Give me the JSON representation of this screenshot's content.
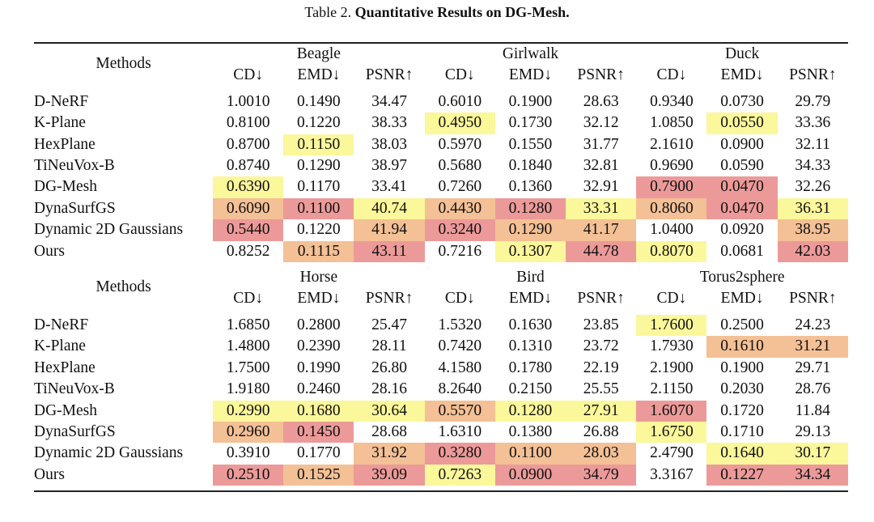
{
  "caption": {
    "label": "Table 2.",
    "text": "Quantitative Results on DG-Mesh."
  },
  "tables": [
    {
      "methods_header": "Methods",
      "groups": [
        "Beagle",
        "Girlwalk",
        "Duck"
      ],
      "metrics": [
        "CD↓",
        "EMD↓",
        "PSNR↑",
        "CD↓",
        "EMD↓",
        "PSNR↑",
        "CD↓",
        "EMD↓",
        "PSNR↑"
      ],
      "rows": [
        [
          "D-NeRF",
          "1.0010",
          "0.1490",
          "34.47",
          "0.6010",
          "0.1900",
          "28.63",
          "0.9340",
          "0.0730",
          "29.79"
        ],
        [
          "K-Plane",
          "0.8100",
          "0.1220",
          "38.33",
          "0.4950",
          "0.1730",
          "32.12",
          "1.0850",
          "0.0550",
          "33.36"
        ],
        [
          "HexPlane",
          "0.8700",
          "0.1150",
          "38.03",
          "0.5970",
          "0.1550",
          "31.77",
          "2.1610",
          "0.0900",
          "32.11"
        ],
        [
          "TiNeuVox-B",
          "0.8740",
          "0.1290",
          "38.97",
          "0.5680",
          "0.1840",
          "32.81",
          "0.9690",
          "0.0590",
          "34.33"
        ],
        [
          "DG-Mesh",
          "0.6390",
          "0.1170",
          "33.41",
          "0.7260",
          "0.1360",
          "32.91",
          "0.7900",
          "0.0470",
          "32.26"
        ],
        [
          "DynaSurfGS",
          "0.6090",
          "0.1100",
          "40.74",
          "0.4430",
          "0.1280",
          "33.31",
          "0.8060",
          "0.0470",
          "36.31"
        ],
        [
          "Dynamic 2D Gaussians",
          "0.5440",
          "0.1220",
          "41.94",
          "0.3240",
          "0.1290",
          "41.17",
          "1.0400",
          "0.0920",
          "38.95"
        ],
        [
          "Ours",
          "0.8252",
          "0.1115",
          "43.11",
          "0.7216",
          "0.1307",
          "44.78",
          "0.8070",
          "0.0681",
          "42.03"
        ]
      ],
      "cell_colors": [
        [
          null,
          null,
          null,
          null,
          null,
          null,
          null,
          null,
          null
        ],
        [
          null,
          null,
          null,
          "#fbf79b",
          null,
          null,
          null,
          "#fbf79b",
          null
        ],
        [
          null,
          "#fbf79b",
          null,
          null,
          null,
          null,
          null,
          null,
          null
        ],
        [
          null,
          null,
          null,
          null,
          null,
          null,
          null,
          null,
          null
        ],
        [
          "#fbf79b",
          null,
          null,
          null,
          null,
          null,
          "#ec9a99",
          "#ec9a99",
          null
        ],
        [
          "#f4c095",
          "#ec9a99",
          "#fbf79b",
          "#f4c095",
          "#ec9a99",
          "#fbf79b",
          "#f4c095",
          "#ec9a99",
          "#fbf79b"
        ],
        [
          "#ec9a99",
          null,
          "#f4c095",
          "#ec9a99",
          "#f4c095",
          "#f4c095",
          null,
          null,
          "#f4c095"
        ],
        [
          null,
          "#f4c095",
          "#ec9a99",
          null,
          "#fbf79b",
          "#ec9a99",
          "#fbf79b",
          null,
          "#ec9a99"
        ]
      ]
    },
    {
      "methods_header": "Methods",
      "groups": [
        "Horse",
        "Bird",
        "Torus2sphere"
      ],
      "metrics": [
        "CD↓",
        "EMD↓",
        "PSNR↑",
        "CD↓",
        "EMD↓",
        "PSNR↑",
        "CD↓",
        "EMD↓",
        "PSNR↑"
      ],
      "rows": [
        [
          "D-NeRF",
          "1.6850",
          "0.2800",
          "25.47",
          "1.5320",
          "0.1630",
          "23.85",
          "1.7600",
          "0.2500",
          "24.23"
        ],
        [
          "K-Plane",
          "1.4800",
          "0.2390",
          "28.11",
          "0.7420",
          "0.1310",
          "23.72",
          "1.7930",
          "0.1610",
          "31.21"
        ],
        [
          "HexPlane",
          "1.7500",
          "0.1990",
          "26.80",
          "4.1580",
          "0.1780",
          "22.19",
          "2.1900",
          "0.1900",
          "29.71"
        ],
        [
          "TiNeuVox-B",
          "1.9180",
          "0.2460",
          "28.16",
          "8.2640",
          "0.2150",
          "25.55",
          "2.1150",
          "0.2030",
          "28.76"
        ],
        [
          "DG-Mesh",
          "0.2990",
          "0.1680",
          "30.64",
          "0.5570",
          "0.1280",
          "27.91",
          "1.6070",
          "0.1720",
          "11.84"
        ],
        [
          "DynaSurfGS",
          "0.2960",
          "0.1450",
          "28.68",
          "1.6310",
          "0.1380",
          "26.88",
          "1.6750",
          "0.1710",
          "29.13"
        ],
        [
          "Dynamic 2D Gaussians",
          "0.3910",
          "0.1770",
          "31.92",
          "0.3280",
          "0.1100",
          "28.03",
          "2.4790",
          "0.1640",
          "30.17"
        ],
        [
          "Ours",
          "0.2510",
          "0.1525",
          "39.09",
          "0.7263",
          "0.0900",
          "34.79",
          "3.3167",
          "0.1227",
          "34.34"
        ]
      ],
      "cell_colors": [
        [
          null,
          null,
          null,
          null,
          null,
          null,
          "#fbf79b",
          null,
          null
        ],
        [
          null,
          null,
          null,
          null,
          null,
          null,
          null,
          "#f4c095",
          "#f4c095"
        ],
        [
          null,
          null,
          null,
          null,
          null,
          null,
          null,
          null,
          null
        ],
        [
          null,
          null,
          null,
          null,
          null,
          null,
          null,
          null,
          null
        ],
        [
          "#fbf79b",
          "#fbf79b",
          "#fbf79b",
          "#f4c095",
          "#fbf79b",
          "#fbf79b",
          "#ec9a99",
          null,
          null
        ],
        [
          "#f4c095",
          "#ec9a99",
          null,
          null,
          null,
          null,
          "#fbf79b",
          null,
          null
        ],
        [
          null,
          null,
          "#f4c095",
          "#ec9a99",
          "#f4c095",
          "#f4c095",
          null,
          "#fbf79b",
          "#fbf79b"
        ],
        [
          "#ec9a99",
          "#f4c095",
          "#ec9a99",
          "#fbf79b",
          "#ec9a99",
          "#ec9a99",
          null,
          "#ec9a99",
          "#ec9a99"
        ]
      ]
    }
  ]
}
